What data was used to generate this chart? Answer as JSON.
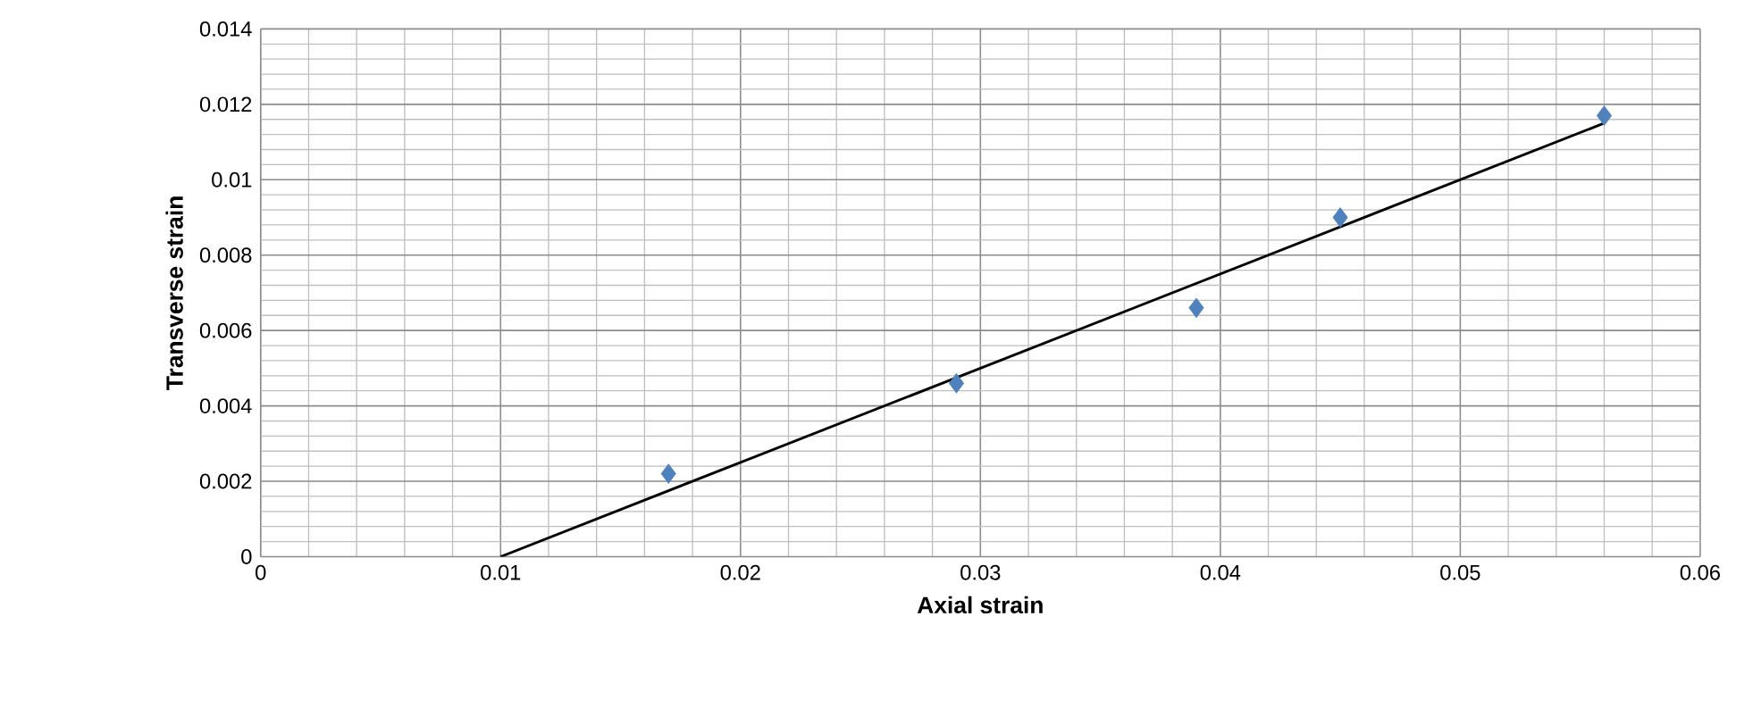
{
  "chart_data": {
    "type": "scatter",
    "xlabel": "Axial strain",
    "ylabel": "Transverse strain",
    "xlim": [
      0,
      0.06
    ],
    "xticks": [
      0,
      0.01,
      0.02,
      0.03,
      0.04,
      0.05,
      0.06
    ],
    "ylim": [
      0,
      0.014
    ],
    "yticks": [
      0,
      0.002,
      0.004,
      0.006,
      0.008,
      0.01,
      0.012,
      0.014
    ],
    "grid": true,
    "series": [
      {
        "marker": "diamond",
        "color": "#4f81bd",
        "x": [
          0.017,
          0.029,
          0.039,
          0.045,
          0.056
        ],
        "values": [
          0.0022,
          0.0046,
          0.0066,
          0.009,
          0.0117
        ]
      },
      {
        "type": "line",
        "color": "#000000",
        "x": [
          0.01,
          0.056
        ],
        "values": [
          0,
          0.0115
        ]
      }
    ]
  }
}
